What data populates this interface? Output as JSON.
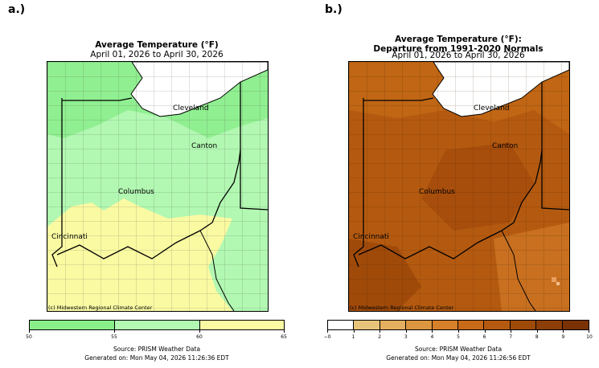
{
  "panel_a": {
    "label": "a.)",
    "title": "Average Temperature (°F)",
    "subtitle": "April 01, 2026 to April 30, 2026",
    "cities": [
      "Cleveland",
      "Canton",
      "Columbus",
      "Cincinnati"
    ],
    "credit": "(c) Midwestern Regional Climate Center",
    "legend": {
      "ticks": [
        "50",
        "55",
        "60",
        "65"
      ],
      "colors": [
        "#89f089",
        "#b2f8b2",
        "#fafaa3"
      ]
    },
    "source": "Source: PRISM Weather Data",
    "generated": "Generated on: Mon May 04, 2026 11:26:36 EDT"
  },
  "panel_b": {
    "label": "b.)",
    "title": "Average Temperature (°F):",
    "title2": "Departure from 1991-2020 Normals",
    "subtitle": "April 01, 2026 to April 30, 2026",
    "cities": [
      "Cleveland",
      "Canton",
      "Columbus",
      "Cincinnati"
    ],
    "credit": "(c) Midwestern Regional Climate Center",
    "legend": {
      "ticks": [
        "−0",
        "1",
        "2",
        "3",
        "4",
        "5",
        "6",
        "7",
        "8",
        "9",
        "10"
      ],
      "colors": [
        "#ffffff",
        "#e8c47a",
        "#e4b060",
        "#dc9640",
        "#d6802a",
        "#c86a18",
        "#b45a10",
        "#9e4a08",
        "#8c3e06",
        "#7a3204"
      ]
    },
    "source": "Source: PRISM Weather Data",
    "generated": "Generated on: Mon May 04, 2026 11:26:56 EDT"
  }
}
